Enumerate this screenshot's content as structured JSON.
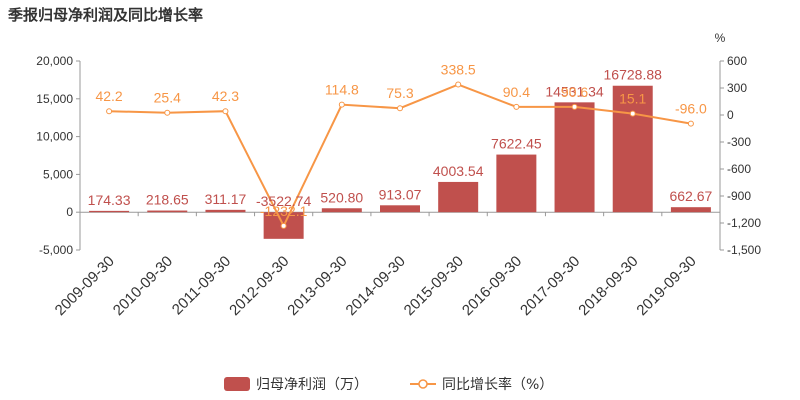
{
  "chart_data": {
    "type": "bar",
    "title": "季报归母净利润及同比增长率",
    "categories": [
      "2009-09-30",
      "2010-09-30",
      "2011-09-30",
      "2012-09-30",
      "2013-09-30",
      "2014-09-30",
      "2015-09-30",
      "2016-09-30",
      "2017-09-30",
      "2018-09-30",
      "2019-09-30"
    ],
    "series": [
      {
        "name": "归母净利润（万）",
        "type": "bar",
        "axis": "left",
        "color": "#c0504d",
        "values": [
          174.33,
          218.65,
          311.17,
          -3522.74,
          520.8,
          913.07,
          4003.54,
          7622.45,
          14531.34,
          16728.88,
          662.67
        ],
        "labels": [
          "174.33",
          "218.65",
          "311.17",
          "-3522.74",
          "520.80",
          "913.07",
          "4003.54",
          "7622.45",
          "14531.34",
          "16728.88",
          "662.67"
        ]
      },
      {
        "name": "同比增长率（%）",
        "type": "line",
        "axis": "right",
        "color": "#f79646",
        "values": [
          42.2,
          25.4,
          42.3,
          -1232.1,
          114.8,
          75.3,
          338.5,
          90.4,
          90.6,
          15.1,
          -96.0
        ],
        "labels": [
          "42.2",
          "25.4",
          "42.3",
          "-1232.1",
          "114.8",
          "75.3",
          "338.5",
          "90.4",
          "90.6",
          "15.1",
          "-96.0"
        ]
      }
    ],
    "y_left": {
      "ylim": [
        -5000,
        20000
      ],
      "ticks": [
        20000,
        15000,
        10000,
        5000,
        0,
        -5000
      ],
      "tick_labels": [
        "20,000",
        "15,000",
        "10,000",
        "5,000",
        "0",
        "-5,000"
      ]
    },
    "y_right": {
      "ylim": [
        -1500,
        600
      ],
      "unit": "%",
      "ticks": [
        600,
        300,
        0,
        -300,
        -600,
        -900,
        -1200,
        -1500
      ],
      "tick_labels": [
        "600",
        "300",
        "0",
        "-300",
        "-600",
        "-900",
        "-1,200",
        "-1,500"
      ]
    },
    "grid": false,
    "legend_position": "bottom"
  }
}
